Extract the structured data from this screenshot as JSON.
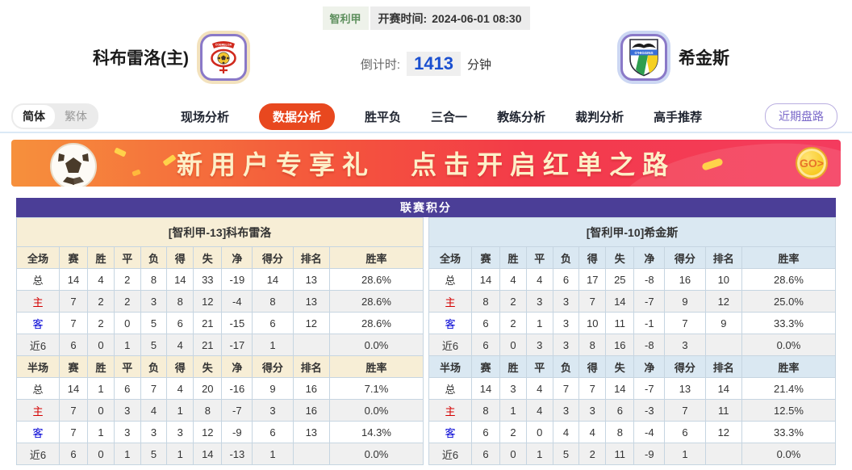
{
  "header": {
    "league": "智利甲",
    "kickoff_label": "开赛时间:",
    "kickoff_time": "2024-06-01 08:30",
    "home_team": "科布雷洛(主)",
    "away_team": "希金斯",
    "home_badge_text": "COBRELOA",
    "away_badge_text": "O'HIGGINS",
    "countdown_label": "倒计时:",
    "countdown_value": "1413",
    "countdown_unit": "分钟"
  },
  "nav": {
    "lang_simplified": "简体",
    "lang_traditional": "繁体",
    "tabs": [
      {
        "label": "现场分析",
        "active": false
      },
      {
        "label": "数据分析",
        "active": true
      },
      {
        "label": "胜平负",
        "active": false
      },
      {
        "label": "三合一",
        "active": false
      },
      {
        "label": "教练分析",
        "active": false
      },
      {
        "label": "裁判分析",
        "active": false
      },
      {
        "label": "高手推荐",
        "active": false
      }
    ],
    "recent_button": "近期盘路"
  },
  "banner": {
    "title": "新用户专享礼",
    "subtitle": "点击开启红单之路",
    "go_label": "GO>"
  },
  "league_table": {
    "title": "联赛积分",
    "columns_full": [
      "全场",
      "赛",
      "胜",
      "平",
      "负",
      "得",
      "失",
      "净",
      "得分",
      "排名",
      "胜率"
    ],
    "columns_half": [
      "半场",
      "赛",
      "胜",
      "平",
      "负",
      "得",
      "失",
      "净",
      "得分",
      "排名",
      "胜率"
    ],
    "home": {
      "header": "[智利甲-13]科布雷洛",
      "full_rows": [
        [
          "总",
          "14",
          "4",
          "2",
          "8",
          "14",
          "33",
          "-19",
          "14",
          "13",
          "28.6%"
        ],
        [
          "主",
          "7",
          "2",
          "2",
          "3",
          "8",
          "12",
          "-4",
          "8",
          "13",
          "28.6%"
        ],
        [
          "客",
          "7",
          "2",
          "0",
          "5",
          "6",
          "21",
          "-15",
          "6",
          "12",
          "28.6%"
        ],
        [
          "近6",
          "6",
          "0",
          "1",
          "5",
          "4",
          "21",
          "-17",
          "1",
          "",
          "0.0%"
        ]
      ],
      "half_rows": [
        [
          "总",
          "14",
          "1",
          "6",
          "7",
          "4",
          "20",
          "-16",
          "9",
          "16",
          "7.1%"
        ],
        [
          "主",
          "7",
          "0",
          "3",
          "4",
          "1",
          "8",
          "-7",
          "3",
          "16",
          "0.0%"
        ],
        [
          "客",
          "7",
          "1",
          "3",
          "3",
          "3",
          "12",
          "-9",
          "6",
          "13",
          "14.3%"
        ],
        [
          "近6",
          "6",
          "0",
          "1",
          "5",
          "1",
          "14",
          "-13",
          "1",
          "",
          "0.0%"
        ]
      ]
    },
    "away": {
      "header": "[智利甲-10]希金斯",
      "full_rows": [
        [
          "总",
          "14",
          "4",
          "4",
          "6",
          "17",
          "25",
          "-8",
          "16",
          "10",
          "28.6%"
        ],
        [
          "主",
          "8",
          "2",
          "3",
          "3",
          "7",
          "14",
          "-7",
          "9",
          "12",
          "25.0%"
        ],
        [
          "客",
          "6",
          "2",
          "1",
          "3",
          "10",
          "11",
          "-1",
          "7",
          "9",
          "33.3%"
        ],
        [
          "近6",
          "6",
          "0",
          "3",
          "3",
          "8",
          "16",
          "-8",
          "3",
          "",
          "0.0%"
        ]
      ],
      "half_rows": [
        [
          "总",
          "14",
          "3",
          "4",
          "7",
          "7",
          "14",
          "-7",
          "13",
          "14",
          "21.4%"
        ],
        [
          "主",
          "8",
          "1",
          "4",
          "3",
          "3",
          "6",
          "-3",
          "7",
          "11",
          "12.5%"
        ],
        [
          "客",
          "6",
          "2",
          "0",
          "4",
          "4",
          "8",
          "-4",
          "6",
          "12",
          "33.3%"
        ],
        [
          "近6",
          "6",
          "0",
          "1",
          "5",
          "2",
          "11",
          "-9",
          "1",
          "",
          "0.0%"
        ]
      ]
    }
  },
  "colors": {
    "accent_tab": "#e8481f",
    "table_title_bg": "#4b3e97",
    "home_header_bg": "#f7eed6",
    "away_header_bg": "#dae8f2",
    "countdown_value": "#1a4fd0",
    "banner_gradient_start": "#f6903c",
    "banner_gradient_end": "#f43b5e"
  }
}
